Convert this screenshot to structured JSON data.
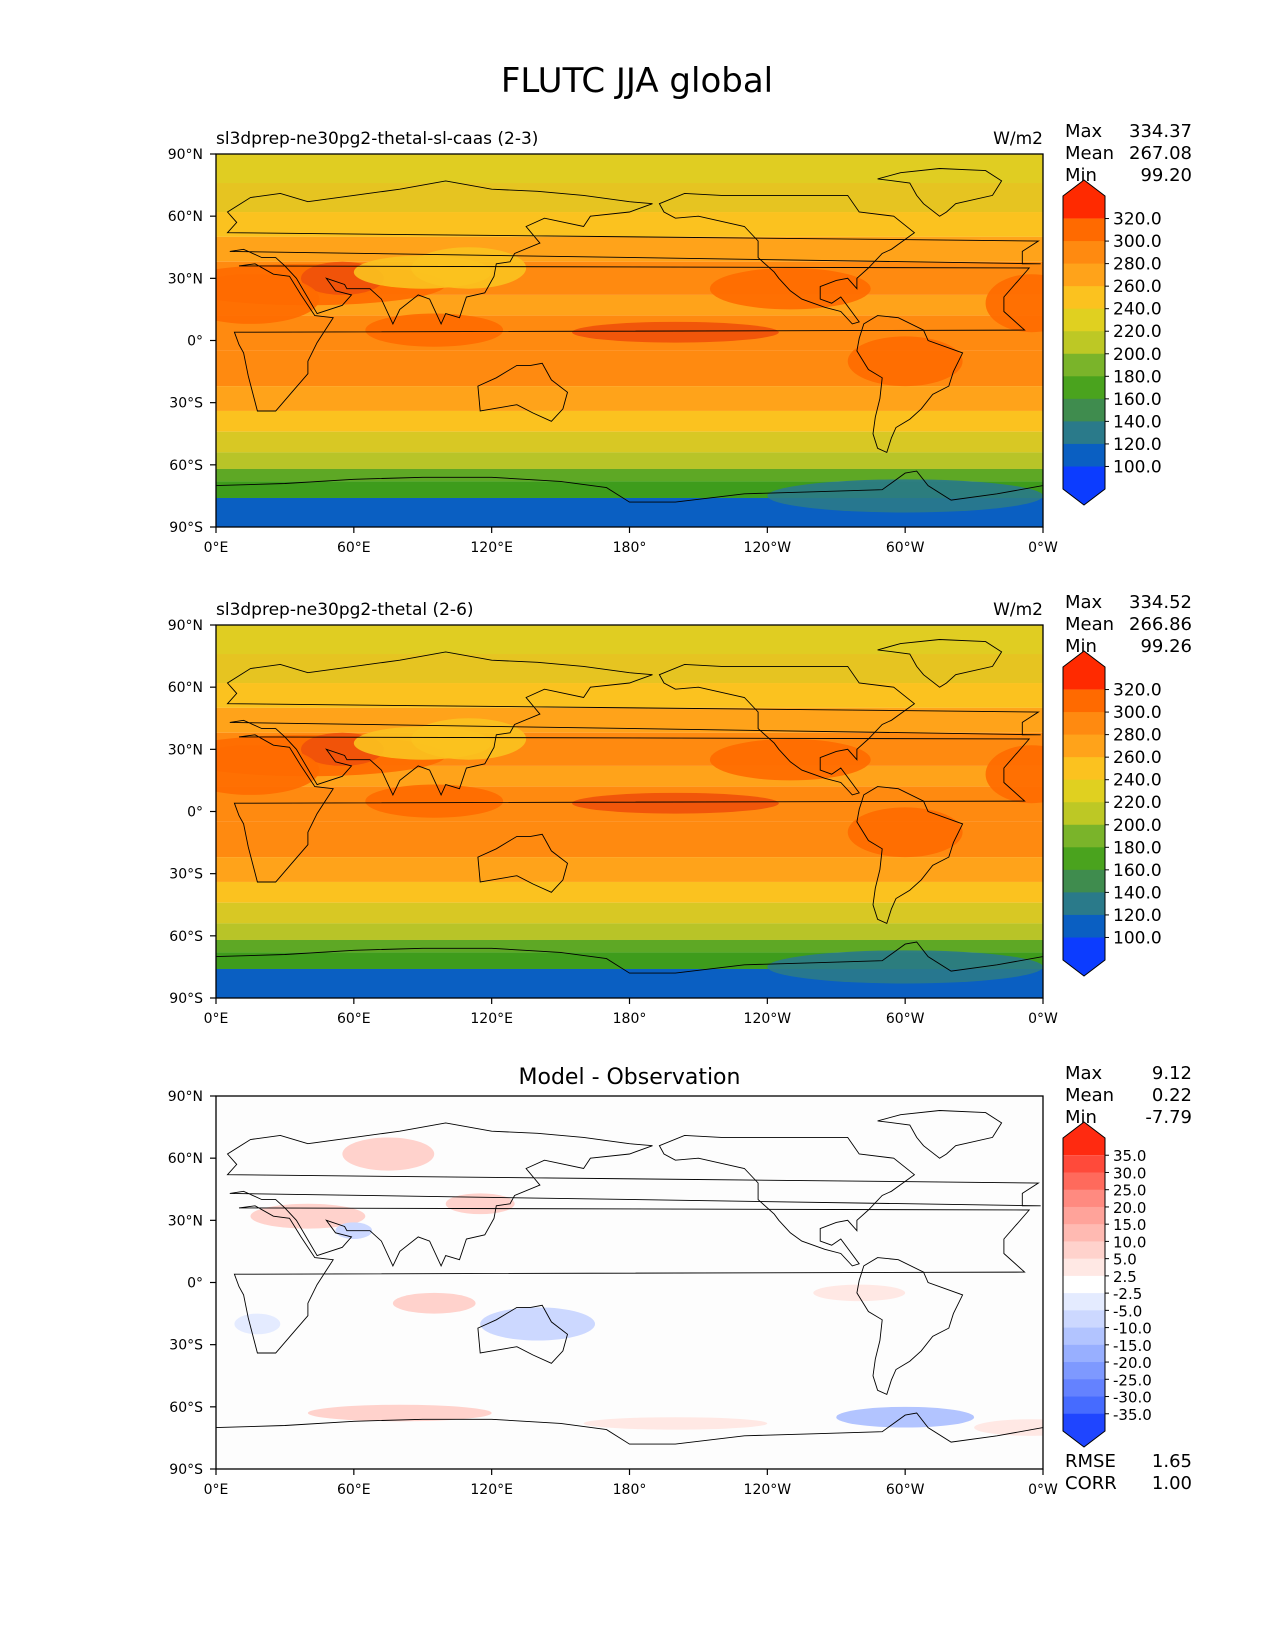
{
  "figure": {
    "title": "FLUTC JJA global"
  },
  "axes": {
    "lat_labels": [
      "90°N",
      "60°N",
      "30°N",
      "0°",
      "30°S",
      "60°S",
      "90°S"
    ],
    "lon_labels": [
      "0°E",
      "60°E",
      "120°E",
      "180°",
      "120°W",
      "60°W",
      "0°W"
    ]
  },
  "stat_labels": {
    "max": "Max",
    "mean": "Mean",
    "min": "Min",
    "rmse": "RMSE",
    "corr": "CORR"
  },
  "panels": [
    {
      "title": "sl3dprep-ne30pg2-thetal-sl-caas (2-3)",
      "units": "W/m2",
      "stats": {
        "max": "334.37",
        "mean": "267.08",
        "min": "99.20"
      },
      "colorbar": {
        "labels": [
          "320.0",
          "300.0",
          "280.0",
          "260.0",
          "240.0",
          "220.0",
          "200.0",
          "180.0",
          "160.0",
          "140.0",
          "120.0",
          "100.0"
        ],
        "colors": [
          "#ff2a00",
          "#ff6a00",
          "#ff8a10",
          "#ffa31a",
          "#fbc21f",
          "#e0d020",
          "#bdc825",
          "#7ab42a",
          "#4aa31e",
          "#3f8c4e",
          "#2a7a8a",
          "#0a5fc2",
          "#0c3cff"
        ]
      },
      "field_colors": {
        "polar_n": "#e0cd22",
        "subpolar": "#e6c421",
        "mid": "#fbc21f",
        "sub": "#ffa31a",
        "tropic": "#ff8a10",
        "hot": "#ff6a00",
        "hotter": "#f0500a",
        "ocean_s1": "#d8c824",
        "ocean_s2": "#b8c428",
        "ocean_s3": "#5ea825",
        "ocean_s4": "#3e9c1c",
        "antarctic": "#0a5fc2",
        "antarctic2": "#2a7a8a"
      }
    },
    {
      "title": "sl3dprep-ne30pg2-thetal (2-6)",
      "units": "W/m2",
      "stats": {
        "max": "334.52",
        "mean": "266.86",
        "min": "99.26"
      },
      "colorbar": {
        "labels": [
          "320.0",
          "300.0",
          "280.0",
          "260.0",
          "240.0",
          "220.0",
          "200.0",
          "180.0",
          "160.0",
          "140.0",
          "120.0",
          "100.0"
        ],
        "colors": [
          "#ff2a00",
          "#ff6a00",
          "#ff8a10",
          "#ffa31a",
          "#fbc21f",
          "#e0d020",
          "#bdc825",
          "#7ab42a",
          "#4aa31e",
          "#3f8c4e",
          "#2a7a8a",
          "#0a5fc2",
          "#0c3cff"
        ]
      },
      "field_colors": {
        "polar_n": "#e0cd22",
        "subpolar": "#e6c421",
        "mid": "#fbc21f",
        "sub": "#ffa31a",
        "tropic": "#ff8a10",
        "hot": "#ff6a00",
        "hotter": "#f0500a",
        "ocean_s1": "#d8c824",
        "ocean_s2": "#b8c428",
        "ocean_s3": "#5ea825",
        "ocean_s4": "#3e9c1c",
        "antarctic": "#0a5fc2",
        "antarctic2": "#2a7a8a"
      }
    },
    {
      "title": "Model - Observation",
      "units": "",
      "stats": {
        "max": "9.12",
        "mean": "0.22",
        "min": "-7.79"
      },
      "extra_stats": {
        "rmse": "1.65",
        "corr": "1.00"
      },
      "colorbar": {
        "labels": [
          "35.0",
          "30.0",
          "25.0",
          "20.0",
          "15.0",
          "10.0",
          "5.0",
          "2.5",
          "-2.5",
          "-5.0",
          "-10.0",
          "-15.0",
          "-20.0",
          "-25.0",
          "-30.0",
          "-35.0"
        ],
        "colors": [
          "#ff2a10",
          "#ff4a3a",
          "#ff6a5c",
          "#ff8a80",
          "#ffa39a",
          "#ffbab2",
          "#ffd2cc",
          "#ffe8e4",
          "#ffffff",
          "#e4ebff",
          "#ccd8ff",
          "#b2c4ff",
          "#98afff",
          "#7e99ff",
          "#6482ff",
          "#466bff",
          "#1f45ff"
        ]
      }
    }
  ]
}
